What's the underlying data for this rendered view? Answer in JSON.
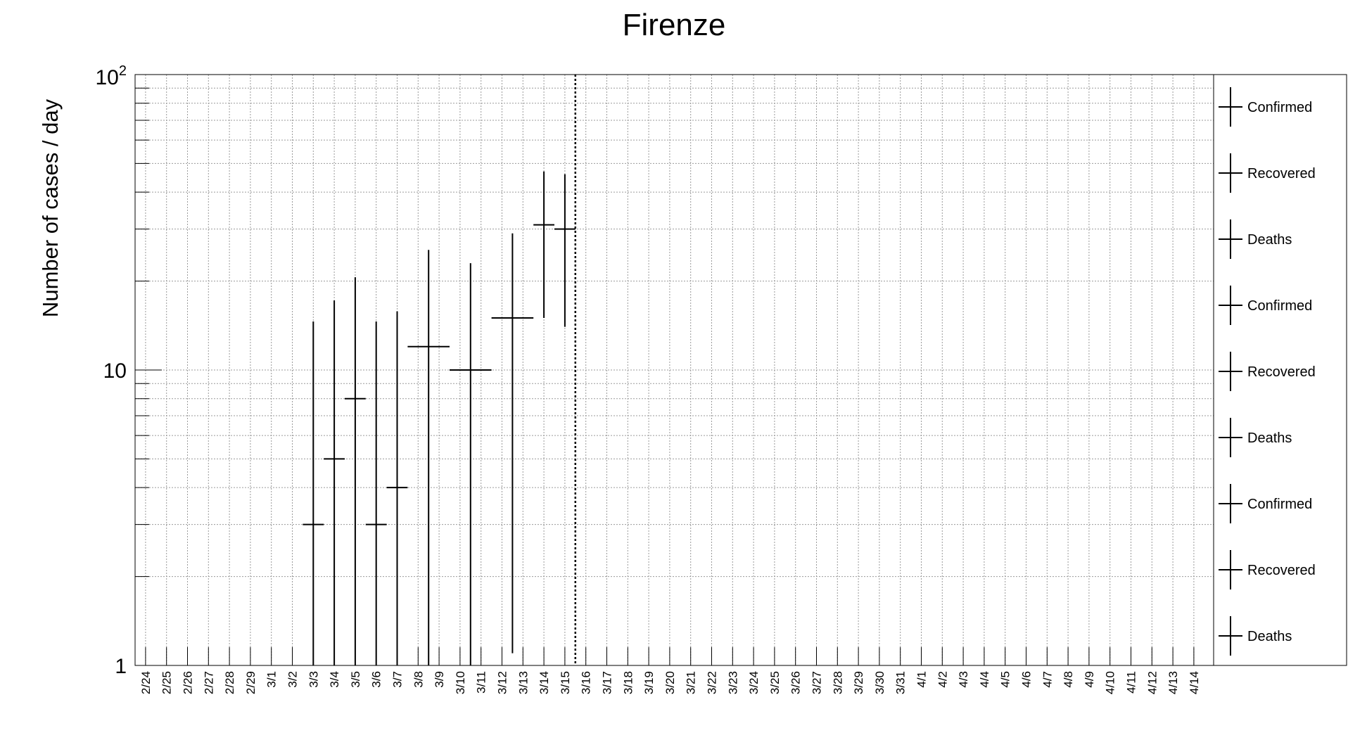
{
  "chart_data": {
    "type": "scatter",
    "title": "Firenze",
    "xlabel": "",
    "ylabel": "Number of cases / day",
    "y_scale": "log",
    "ylim": [
      1,
      100
    ],
    "y_ticks": [
      {
        "value": 1,
        "label": "1",
        "base": "",
        "exp": ""
      },
      {
        "value": 10,
        "label": "10",
        "base": "",
        "exp": ""
      },
      {
        "value": 100,
        "label": "",
        "base": "10",
        "exp": "2"
      }
    ],
    "grid": true,
    "legend_position": "right",
    "categories": [
      "2/24",
      "2/25",
      "2/26",
      "2/27",
      "2/28",
      "2/29",
      "3/1",
      "3/2",
      "3/3",
      "3/4",
      "3/5",
      "3/6",
      "3/7",
      "3/8",
      "3/9",
      "3/10",
      "3/11",
      "3/12",
      "3/13",
      "3/14",
      "3/15",
      "3/16",
      "3/17",
      "3/18",
      "3/19",
      "3/20",
      "3/21",
      "3/22",
      "3/23",
      "3/24",
      "3/25",
      "3/26",
      "3/27",
      "3/28",
      "3/29",
      "3/30",
      "3/31",
      "4/1",
      "4/2",
      "4/3",
      "4/4",
      "4/5",
      "4/6",
      "4/7",
      "4/8",
      "4/9",
      "4/10",
      "4/11",
      "4/12",
      "4/13",
      "4/14"
    ],
    "series": [
      {
        "name": "Confirmed",
        "color": "#000000",
        "points": [
          {
            "x": "3/3",
            "y": 3,
            "x_width": 1,
            "y_low": 1,
            "y_high": 14.6
          },
          {
            "x": "3/4",
            "y": 5,
            "x_width": 1,
            "y_low": 1,
            "y_high": 17.2
          },
          {
            "x": "3/5",
            "y": 8,
            "x_width": 1,
            "y_low": 1,
            "y_high": 20.6
          },
          {
            "x": "3/6",
            "y": 3,
            "x_width": 1,
            "y_low": 1,
            "y_high": 14.6
          },
          {
            "x": "3/7",
            "y": 4,
            "x_width": 1,
            "y_low": 1,
            "y_high": 15.8
          },
          {
            "x": "3/8",
            "y": 12,
            "x_width": 2,
            "y_low": 1,
            "y_high": 25.5
          },
          {
            "x": "3/10",
            "y": 10,
            "x_width": 2,
            "y_low": 1,
            "y_high": 23.0
          },
          {
            "x": "3/12",
            "y": 15,
            "x_width": 2,
            "y_low": 1.1,
            "y_high": 29.0
          },
          {
            "x": "3/14",
            "y": 31,
            "x_width": 1,
            "y_low": 15.0,
            "y_high": 47.0
          },
          {
            "x": "3/15",
            "y": 30,
            "x_width": 1,
            "y_low": 14.0,
            "y_high": 46.0
          }
        ]
      }
    ],
    "vertical_marker": {
      "after": "3/15",
      "style": "dotted"
    },
    "legend": [
      "Confirmed",
      "Recovered",
      "Deaths",
      "Confirmed",
      "Recovered",
      "Deaths",
      "Confirmed",
      "Recovered",
      "Deaths"
    ]
  }
}
